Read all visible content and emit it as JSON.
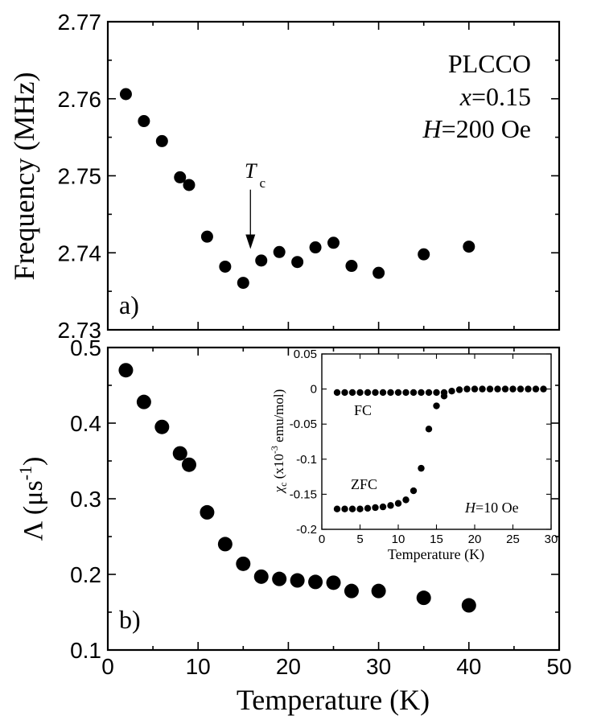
{
  "chart_data": [
    {
      "id": "a",
      "type": "scatter",
      "panel_label": "a)",
      "xlabel": "Temperature (K)",
      "ylabel": "Frequency (MHz)",
      "xlim": [
        0,
        50
      ],
      "ylim": [
        2.73,
        2.77
      ],
      "yticks": [
        2.73,
        2.74,
        2.75,
        2.76,
        2.77
      ],
      "ytick_labels": [
        "2.73",
        "2.74",
        "2.75",
        "2.76",
        "2.77"
      ],
      "grid": false,
      "annotations": {
        "sample": "PLCCO",
        "x_label_var": "x",
        "x_label_value": "=0.15",
        "h_label_var": "H",
        "h_label_value": "=200 Oe",
        "tc_main": "T",
        "tc_sub": "c",
        "tc_arrow_x": 15.8,
        "tc_arrow_y_top": 2.7482,
        "tc_arrow_y_tip": 2.7405
      },
      "series": [
        {
          "name": "Frequency",
          "x": [
            2,
            4,
            6,
            8,
            9,
            11,
            13,
            15,
            17,
            19,
            21,
            23,
            25,
            27,
            30,
            35,
            40
          ],
          "y": [
            2.7606,
            2.7571,
            2.7545,
            2.7498,
            2.7488,
            2.7421,
            2.7382,
            2.7361,
            2.739,
            2.7401,
            2.7388,
            2.7407,
            2.7413,
            2.7383,
            2.7374,
            2.7398,
            2.7408
          ]
        }
      ]
    },
    {
      "id": "b",
      "type": "scatter",
      "panel_label": "b)",
      "xlabel": "Temperature (K)",
      "ylabel_main": "Λ (μs",
      "ylabel_sup": "-1",
      "ylabel_close": ")",
      "xlim": [
        0,
        50
      ],
      "ylim": [
        0.1,
        0.5
      ],
      "xticks": [
        0,
        10,
        20,
        30,
        40,
        50
      ],
      "xtick_labels": [
        "0",
        "10",
        "20",
        "30",
        "40",
        "50"
      ],
      "yticks": [
        0.1,
        0.2,
        0.3,
        0.4,
        0.5
      ],
      "ytick_labels": [
        "0.1",
        "0.2",
        "0.3",
        "0.4",
        "0.5"
      ],
      "grid": false,
      "series": [
        {
          "name": "Lambda",
          "x": [
            2,
            4,
            6,
            8,
            9,
            11,
            13,
            15,
            17,
            19,
            21,
            23,
            25,
            27,
            30,
            35,
            40
          ],
          "y": [
            0.47,
            0.428,
            0.395,
            0.36,
            0.345,
            0.282,
            0.24,
            0.214,
            0.197,
            0.194,
            0.192,
            0.19,
            0.189,
            0.178,
            0.178,
            0.169,
            0.159
          ]
        }
      ]
    },
    {
      "id": "inset",
      "type": "scatter",
      "xlabel": "Temperature (K)",
      "ylabel_chi": "χ",
      "ylabel_chi_sub": "c",
      "ylabel_rest_a": " (x10",
      "ylabel_sup": "-3",
      "ylabel_rest_b": " emu/mol)",
      "xlim": [
        0,
        30
      ],
      "ylim": [
        -0.2,
        0.05
      ],
      "xticks": [
        0,
        5,
        10,
        15,
        20,
        25,
        30
      ],
      "xtick_labels": [
        "0",
        "5",
        "10",
        "15",
        "20",
        "25",
        "30"
      ],
      "yticks": [
        -0.2,
        -0.15,
        -0.1,
        -0.05,
        0,
        0.05
      ],
      "ytick_labels": [
        "-0.2",
        "-0.15",
        "-0.1",
        "-0.05",
        "0",
        "0.05"
      ],
      "grid": false,
      "labels": {
        "fc": "FC",
        "zfc": "ZFC",
        "field_var": "H",
        "field_value": "=10 Oe"
      },
      "series": [
        {
          "name": "FC",
          "x": [
            2,
            3,
            4,
            5,
            6,
            7,
            8,
            9,
            10,
            11,
            12,
            13,
            14,
            15,
            16,
            17,
            18,
            19,
            20,
            21,
            22,
            23,
            24,
            25,
            26,
            27,
            28,
            29
          ],
          "y": [
            -0.005,
            -0.005,
            -0.005,
            -0.005,
            -0.005,
            -0.005,
            -0.005,
            -0.005,
            -0.005,
            -0.005,
            -0.005,
            -0.005,
            -0.005,
            -0.005,
            -0.005,
            -0.003,
            -0.001,
            0.0,
            0.0,
            0.0,
            0.0,
            0.0,
            0.0,
            0.0,
            0.0,
            0.0,
            0.0,
            0.0
          ]
        },
        {
          "name": "ZFC",
          "x": [
            2,
            3,
            4,
            5,
            6,
            7,
            8,
            9,
            10,
            11,
            12,
            13,
            14,
            15,
            16
          ],
          "y": [
            -0.171,
            -0.171,
            -0.171,
            -0.171,
            -0.17,
            -0.169,
            -0.168,
            -0.166,
            -0.163,
            -0.158,
            -0.145,
            -0.113,
            -0.057,
            -0.024,
            -0.01
          ]
        }
      ]
    }
  ]
}
